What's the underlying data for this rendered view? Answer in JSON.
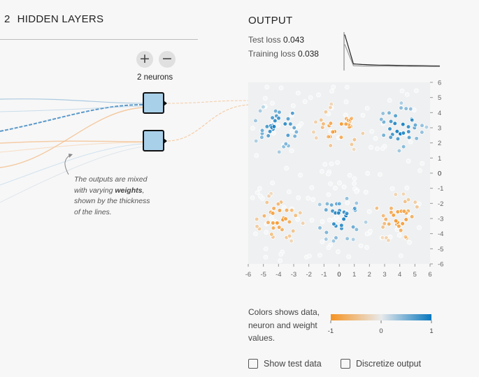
{
  "hidden_layers": {
    "count": "2",
    "title": "HIDDEN LAYERS",
    "add_label": "+",
    "remove_label": "−",
    "neurons_label": "2 neurons"
  },
  "annotation": {
    "part1": "The outputs are mixed with varying",
    "bold": "weights",
    "part2": ", shown by the thickness of the lines."
  },
  "output": {
    "title": "OUTPUT",
    "test_loss_label": "Test loss",
    "test_loss_value": "0.043",
    "training_loss_label": "Training loss",
    "training_loss_value": "0.038",
    "loss_chart": {
      "test": [
        0.3,
        0.06,
        0.055,
        0.052,
        0.05,
        0.049,
        0.048,
        0.047,
        0.046,
        0.045,
        0.044,
        0.043
      ],
      "train": [
        0.22,
        0.045,
        0.043,
        0.042,
        0.041,
        0.041,
        0.04,
        0.04,
        0.039,
        0.039,
        0.038,
        0.038
      ]
    },
    "plot": {
      "x_ticks": [
        "-6",
        "-5",
        "-4",
        "-3",
        "-2",
        "-1",
        "0",
        "1",
        "2",
        "3",
        "4",
        "5",
        "6"
      ],
      "y_ticks": [
        "6",
        "5",
        "4",
        "3",
        "2",
        "1",
        "0",
        "-1",
        "-2",
        "-3",
        "-4",
        "-5",
        "-6"
      ],
      "xlim": [
        -6,
        6
      ],
      "ylim": [
        -6,
        6
      ]
    },
    "legend": {
      "text": "Colors shows data, neuron and weight values.",
      "min": "-1",
      "mid": "0",
      "max": "1",
      "color_neg": "#f59322",
      "color_mid": "#e8eaeb",
      "color_pos": "#0877bd"
    },
    "show_test_data_label": "Show test data",
    "discretize_label": "Discretize output"
  }
}
